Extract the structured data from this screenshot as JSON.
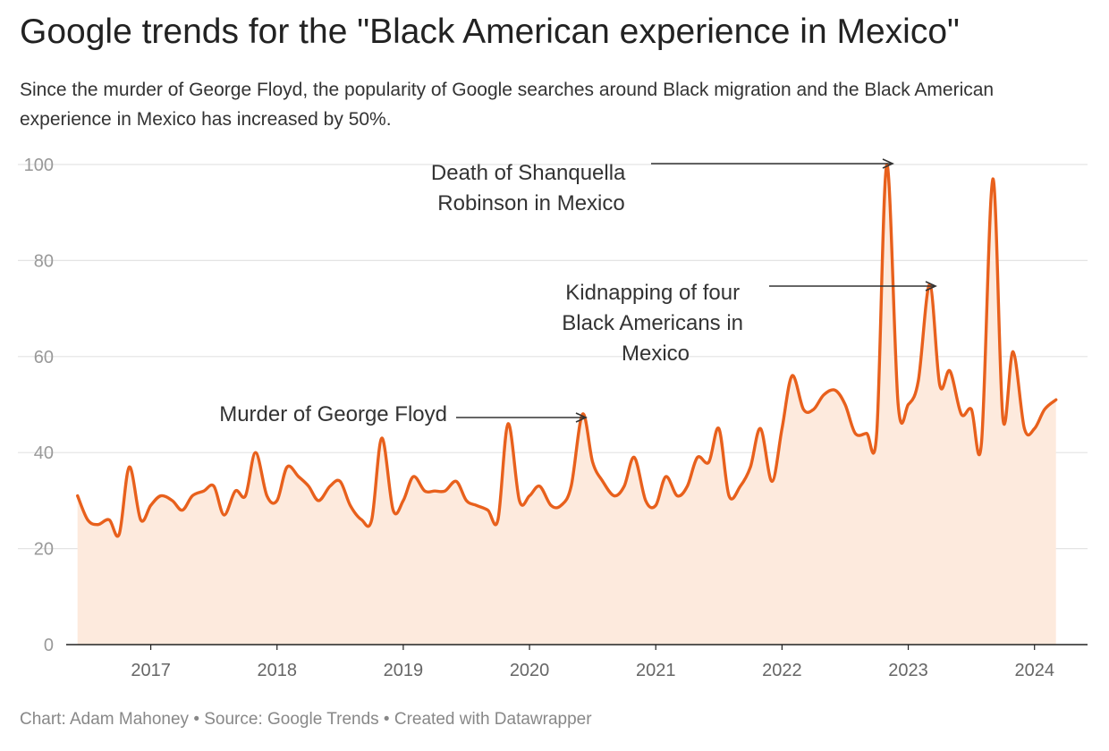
{
  "header": {
    "title": "Google trends for the \"Black American experience in Mexico\"",
    "subtitle": "Since the murder of George Floyd, the popularity of Google searches around Black migration and the Black American experience in Mexico has increased by 50%."
  },
  "footer": {
    "text": "Chart: Adam Mahoney • Source: Google Trends • Created with Datawrapper"
  },
  "colors": {
    "line": "#e8601c",
    "area": "#fdeadd",
    "grid": "#e4e4e4",
    "axis": "#222222",
    "tick_label": "#999999",
    "annotation": "#333333"
  },
  "chart_data": {
    "type": "area",
    "title": "Google trends for the \"Black American experience in Mexico\"",
    "xlabel": "",
    "ylabel": "",
    "ylim": [
      0,
      100
    ],
    "yticks": [
      0,
      20,
      40,
      60,
      80,
      100
    ],
    "xlim": [
      2016.33,
      2024.42
    ],
    "xticks": [
      {
        "value": 2017,
        "label": "2017"
      },
      {
        "value": 2018,
        "label": "2018"
      },
      {
        "value": 2019,
        "label": "2019"
      },
      {
        "value": 2020,
        "label": "2020"
      },
      {
        "value": 2021,
        "label": "2021"
      },
      {
        "value": 2022,
        "label": "2022"
      },
      {
        "value": 2023,
        "label": "2023"
      },
      {
        "value": 2024,
        "label": "2024"
      }
    ],
    "grid": true,
    "legend": "none",
    "series": [
      {
        "name": "",
        "x": [
          2016.42,
          2016.5,
          2016.58,
          2016.67,
          2016.75,
          2016.83,
          2016.92,
          2017.0,
          2017.08,
          2017.17,
          2017.25,
          2017.33,
          2017.42,
          2017.5,
          2017.58,
          2017.67,
          2017.75,
          2017.83,
          2017.92,
          2018.0,
          2018.08,
          2018.17,
          2018.25,
          2018.33,
          2018.42,
          2018.5,
          2018.58,
          2018.67,
          2018.75,
          2018.83,
          2018.92,
          2019.0,
          2019.08,
          2019.17,
          2019.25,
          2019.33,
          2019.42,
          2019.5,
          2019.58,
          2019.67,
          2019.75,
          2019.83,
          2019.92,
          2020.0,
          2020.08,
          2020.17,
          2020.25,
          2020.33,
          2020.42,
          2020.5,
          2020.58,
          2020.67,
          2020.75,
          2020.83,
          2020.92,
          2021.0,
          2021.08,
          2021.17,
          2021.25,
          2021.33,
          2021.42,
          2021.5,
          2021.58,
          2021.67,
          2021.75,
          2021.83,
          2021.92,
          2022.0,
          2022.08,
          2022.17,
          2022.25,
          2022.33,
          2022.42,
          2022.5,
          2022.58,
          2022.67,
          2022.75,
          2022.83,
          2022.92,
          2023.0,
          2023.08,
          2023.17,
          2023.25,
          2023.33,
          2023.42,
          2023.5,
          2023.58,
          2023.67,
          2023.75,
          2023.83,
          2023.92,
          2024.0,
          2024.08,
          2024.17
        ],
        "values": [
          31,
          26,
          25,
          26,
          23,
          37,
          26,
          29,
          31,
          30,
          28,
          31,
          32,
          33,
          27,
          32,
          31,
          40,
          31,
          30,
          37,
          35,
          33,
          30,
          33,
          34,
          29,
          26,
          26,
          43,
          28,
          30,
          35,
          32,
          32,
          32,
          34,
          30,
          29,
          28,
          26,
          46,
          30,
          31,
          33,
          29,
          29,
          33,
          48,
          38,
          34,
          31,
          33,
          39,
          30,
          29,
          35,
          31,
          33,
          39,
          38,
          45,
          31,
          33,
          37,
          45,
          34,
          45,
          56,
          49,
          49,
          52,
          53,
          50,
          44,
          44,
          44,
          100,
          50,
          50,
          55,
          75,
          54,
          57,
          48,
          49,
          42,
          97,
          47,
          61,
          45,
          45,
          49,
          51
        ]
      }
    ],
    "annotations": [
      {
        "lines": [
          "Death of Shanquella",
          "Robinson in Mexico"
        ],
        "x": 2022.83,
        "y": 100
      },
      {
        "lines": [
          "Kidnapping of four",
          "Black Americans in",
          "Mexico"
        ],
        "x": 2023.17,
        "y": 75
      },
      {
        "lines": [
          "Murder of George Floyd"
        ],
        "x": 2020.42,
        "y": 48
      }
    ]
  }
}
